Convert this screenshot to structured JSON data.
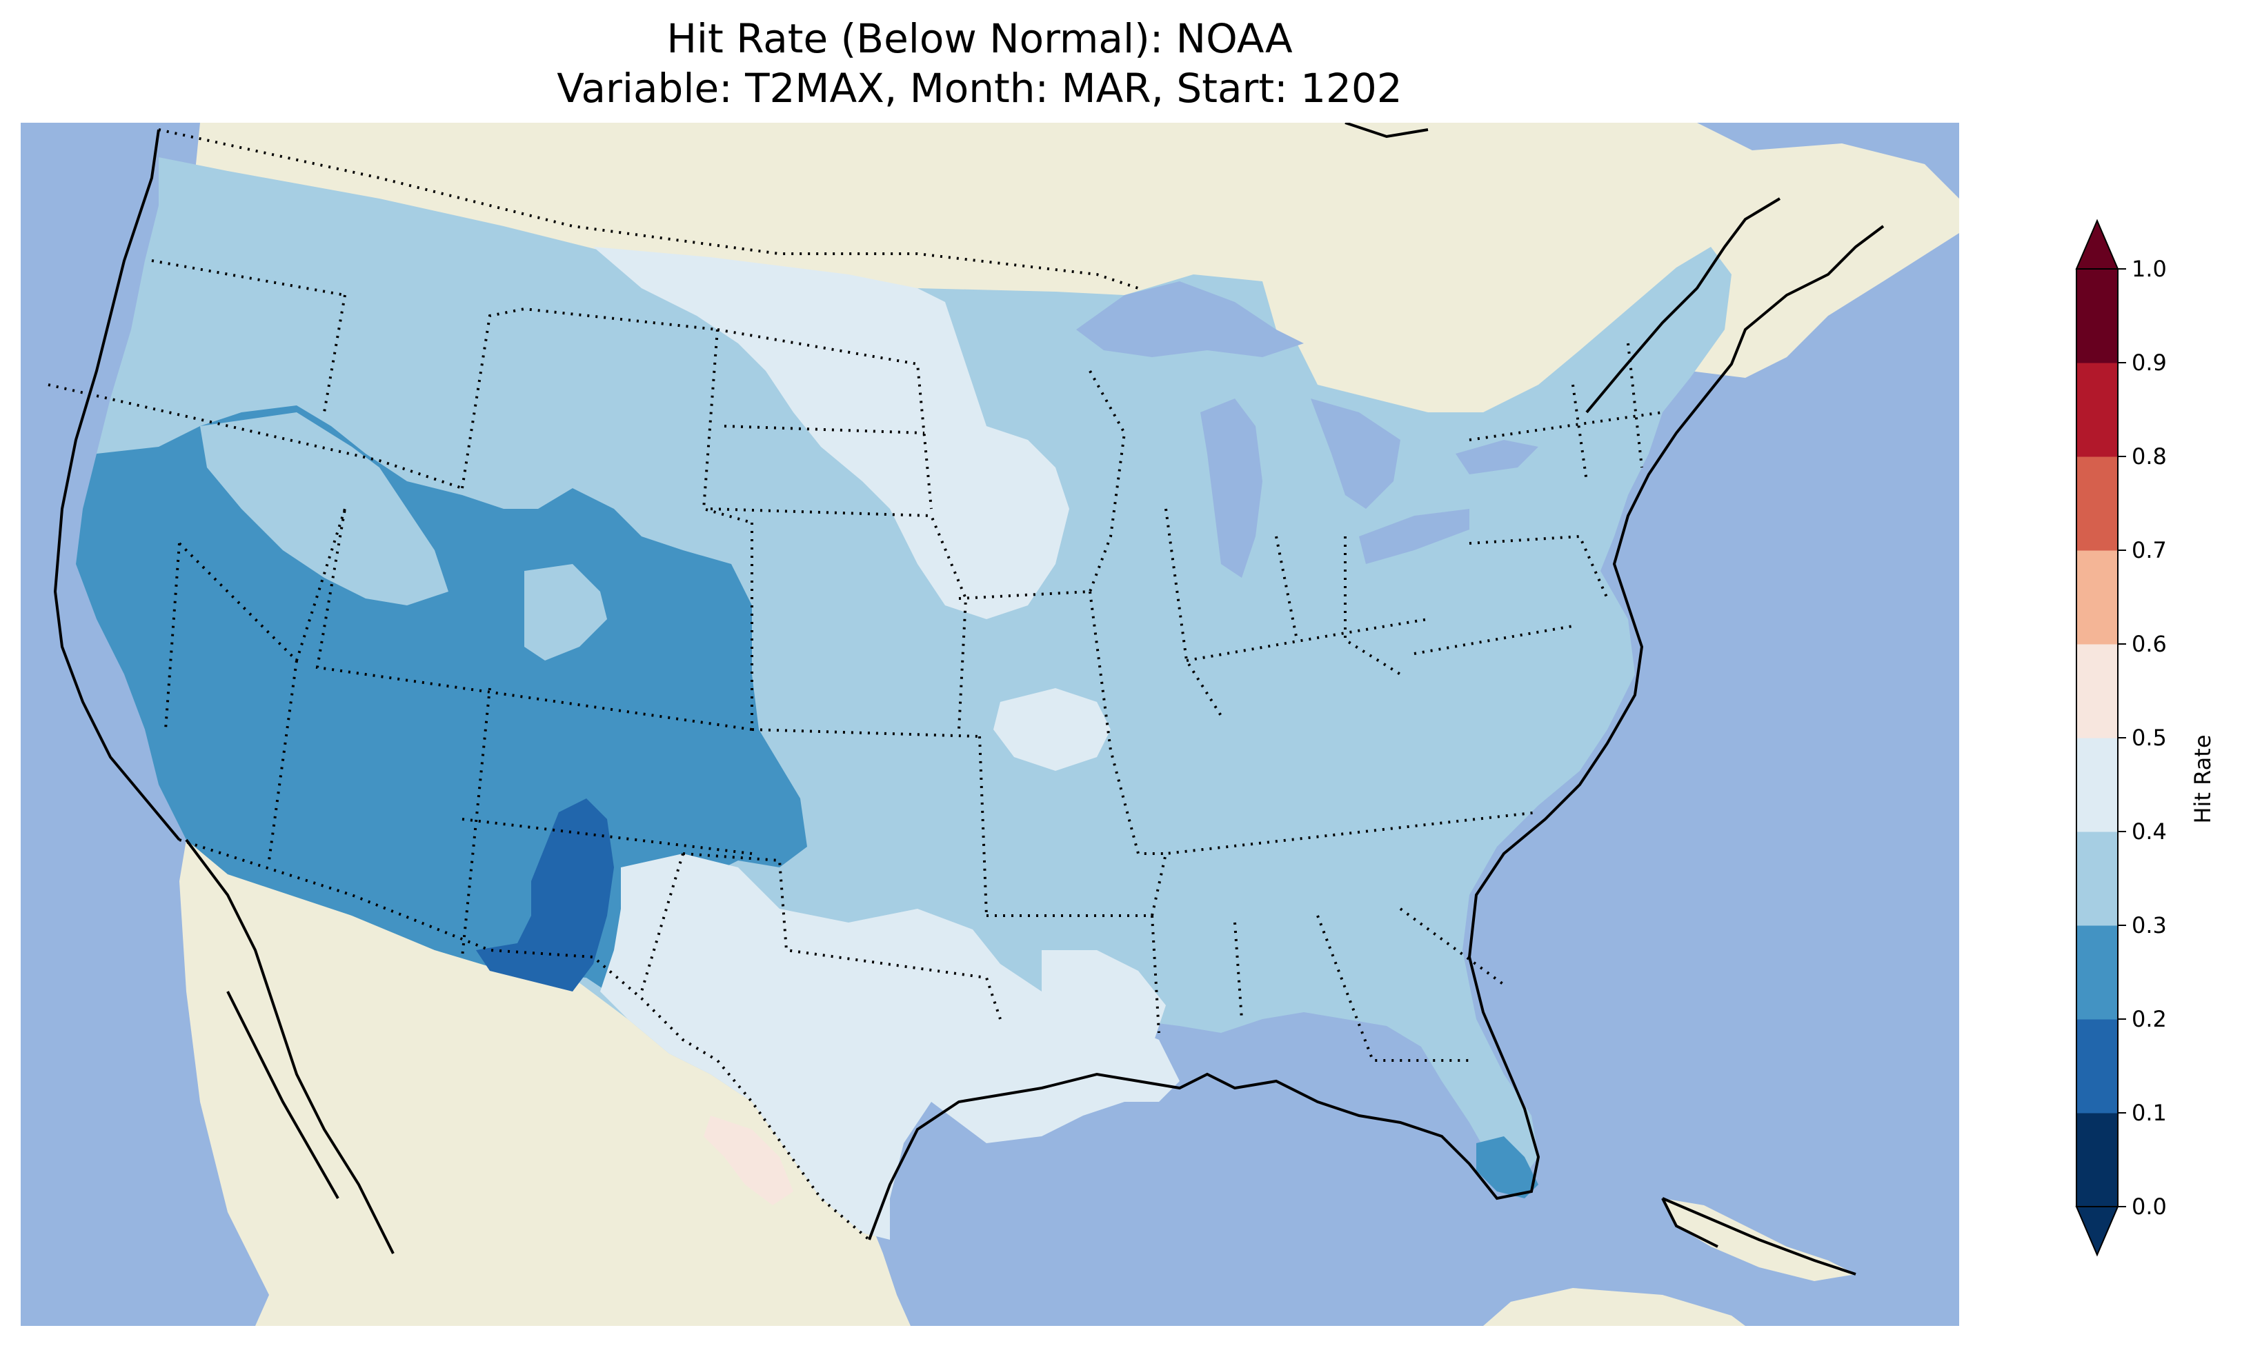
{
  "title": {
    "line1": "Hit Rate (Below Normal): NOAA",
    "line2": "Variable: T2MAX, Month: MAR, Start: 1202"
  },
  "colors": {
    "ocean": "#97b5e0",
    "land": "#efedd9",
    "lake": "#97b5e0",
    "outline": "#000000"
  },
  "colorbar": {
    "label": "Hit Rate",
    "ticks": [
      "0.0",
      "0.1",
      "0.2",
      "0.3",
      "0.4",
      "0.5",
      "0.6",
      "0.7",
      "0.8",
      "0.9",
      "1.0"
    ],
    "bins": [
      {
        "lower": 0.0,
        "upper": 0.1,
        "color": "#053061"
      },
      {
        "lower": 0.1,
        "upper": 0.2,
        "color": "#2166ac"
      },
      {
        "lower": 0.2,
        "upper": 0.3,
        "color": "#4393c3"
      },
      {
        "lower": 0.3,
        "upper": 0.4,
        "color": "#a6cee3"
      },
      {
        "lower": 0.4,
        "upper": 0.5,
        "color": "#deebf3"
      },
      {
        "lower": 0.5,
        "upper": 0.6,
        "color": "#f7e6de"
      },
      {
        "lower": 0.6,
        "upper": 0.7,
        "color": "#f4b596"
      },
      {
        "lower": 0.7,
        "upper": 0.8,
        "color": "#d6604d"
      },
      {
        "lower": 0.8,
        "upper": 0.9,
        "color": "#b2182b"
      },
      {
        "lower": 0.9,
        "upper": 1.0,
        "color": "#67001f"
      }
    ],
    "extend": "both"
  },
  "map_regions": [
    {
      "name": "pacific-northwest",
      "hit_rate_bin": "0.3-0.4"
    },
    {
      "name": "california-nevada-arizona",
      "hit_rate_bin": "0.2-0.3"
    },
    {
      "name": "new-mexico-core",
      "hit_rate_bin": "0.1-0.2"
    },
    {
      "name": "northern-plains",
      "hit_rate_bin": "0.4-0.5"
    },
    {
      "name": "midwest",
      "hit_rate_bin": "0.4-0.5"
    },
    {
      "name": "texas",
      "hit_rate_bin": "0.4-0.5"
    },
    {
      "name": "south-texas-patch",
      "hit_rate_bin": "0.5-0.6"
    },
    {
      "name": "eastern-us",
      "hit_rate_bin": "0.3-0.4"
    },
    {
      "name": "south-florida",
      "hit_rate_bin": "0.2-0.3"
    }
  ]
}
